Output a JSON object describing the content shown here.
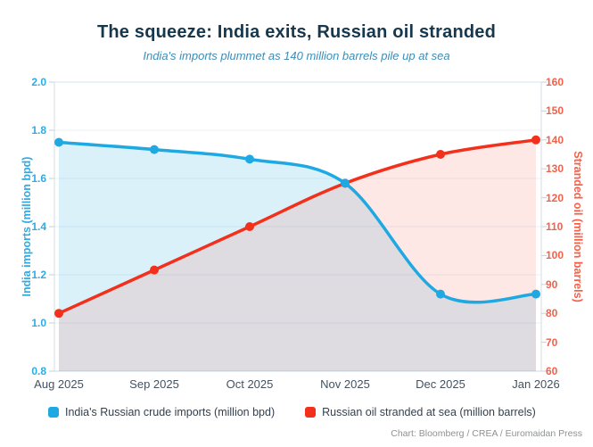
{
  "title": "The squeeze: India exits, Russian oil stranded",
  "subtitle": "India's imports plummet as 140 million barrels pile up at sea",
  "attribution": "Chart: Bloomberg / CREA / Euromaidan Press",
  "colors": {
    "title": "#17374d",
    "subtitle": "#3a8db9",
    "blue_series": "#1ea9e3",
    "red_series": "#f2301b",
    "blue_fill": "rgba(31,168,227,0.16)",
    "red_fill": "rgba(242,48,27,0.11)",
    "left_axis_text": "#2fabe3",
    "right_axis_text": "#f4604a",
    "gridline": "#e8f1f7",
    "grid_top": "#cde7f4",
    "grid_bottom": "#c9dbe7",
    "axis_line": "#d5dde2",
    "tick_mark": "#c5d2da",
    "x_label_text": "#44525f"
  },
  "chart_data": {
    "type": "line",
    "categories": [
      "Aug 2025",
      "Sep 2025",
      "Oct 2025",
      "Nov 2025",
      "Dec 2025",
      "Jan 2026"
    ],
    "series": [
      {
        "name": "India's Russian crude imports (million bpd)",
        "axis": "left",
        "color": "#1ea9e3",
        "fill": "rgba(31,168,227,0.16)",
        "values": [
          1.75,
          1.72,
          1.68,
          1.58,
          1.12,
          1.12
        ]
      },
      {
        "name": "Russian oil stranded at sea (million barrels)",
        "axis": "right",
        "color": "#f2301b",
        "fill": "rgba(242,48,27,0.11)",
        "values": [
          80,
          95,
          110,
          125,
          135,
          140
        ]
      }
    ],
    "left_axis": {
      "label": "India imports (million bpd)",
      "min": 0.8,
      "max": 2.0,
      "ticks": [
        "2.0",
        "1.8",
        "1.6",
        "1.4",
        "1.2",
        "1.0",
        "0.8"
      ]
    },
    "right_axis": {
      "label": "Stranded oil (million barrels)",
      "min": 60,
      "max": 160,
      "ticks": [
        "160",
        "150",
        "140",
        "130",
        "120",
        "110",
        "100",
        "90",
        "80",
        "70",
        "60"
      ]
    },
    "grid": "horizontal",
    "legend_position": "bottom"
  }
}
